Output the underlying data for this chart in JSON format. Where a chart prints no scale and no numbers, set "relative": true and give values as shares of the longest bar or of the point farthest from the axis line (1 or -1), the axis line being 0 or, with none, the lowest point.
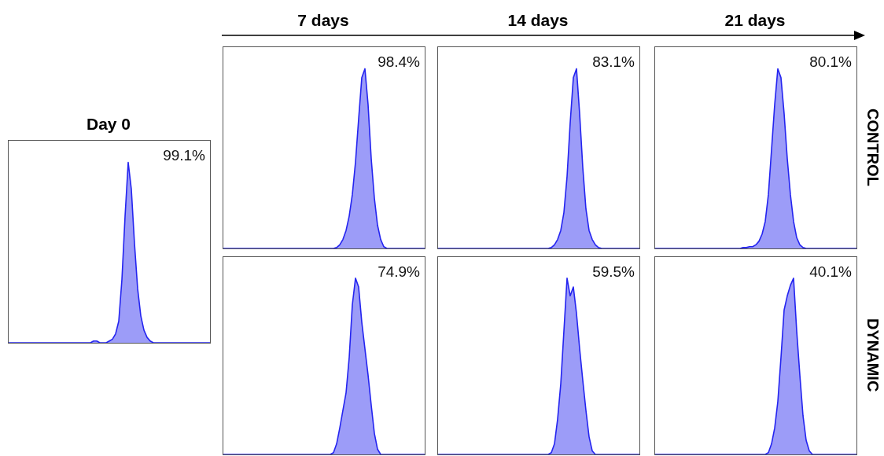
{
  "chart_data": [
    {
      "type": "area",
      "relative": true,
      "title": "Day 0",
      "annotations": [
        "99.1%"
      ],
      "categories": [
        null,
        null,
        null,
        null,
        null,
        null,
        null,
        null,
        null,
        null,
        null,
        null,
        null,
        null,
        null,
        null,
        null,
        null,
        null,
        null,
        null,
        null,
        null,
        null,
        null,
        null,
        null,
        null,
        null,
        null,
        null,
        null,
        null,
        null,
        null,
        null,
        null,
        null,
        null,
        null,
        null,
        null,
        null,
        null,
        null,
        null,
        null,
        null,
        null,
        null,
        null,
        null,
        null,
        null,
        null,
        null,
        null,
        null,
        null,
        null,
        null,
        null,
        null,
        null,
        null
      ],
      "series": [
        {
          "color": "#2424f0",
          "values": [
            0,
            0,
            0,
            0,
            0,
            0,
            0,
            0,
            0,
            0,
            0,
            0,
            0,
            0,
            0,
            0,
            0,
            0,
            0,
            0,
            0,
            0,
            0,
            0,
            0,
            0,
            0,
            0.01,
            0.01,
            0,
            0,
            0,
            0.01,
            0.02,
            0.05,
            0.12,
            0.35,
            0.7,
            1,
            0.85,
            0.55,
            0.3,
            0.15,
            0.07,
            0.03,
            0.01,
            0,
            0,
            0,
            0,
            0,
            0,
            0,
            0,
            0,
            0,
            0,
            0,
            0,
            0,
            0,
            0,
            0,
            0,
            0
          ]
        }
      ]
    },
    {
      "type": "area",
      "relative": true,
      "title": "7 days",
      "annotations": [
        "98.4%"
      ],
      "categories": [
        null,
        null,
        null,
        null,
        null,
        null,
        null,
        null,
        null,
        null,
        null,
        null,
        null,
        null,
        null,
        null,
        null,
        null,
        null,
        null,
        null,
        null,
        null,
        null,
        null,
        null,
        null,
        null,
        null,
        null,
        null,
        null,
        null,
        null,
        null,
        null,
        null,
        null,
        null,
        null,
        null,
        null,
        null,
        null,
        null,
        null,
        null,
        null,
        null,
        null,
        null,
        null,
        null,
        null,
        null,
        null,
        null,
        null,
        null,
        null,
        null,
        null,
        null,
        null,
        null
      ],
      "series": [
        {
          "color": "#2424f0",
          "values": [
            0,
            0,
            0,
            0,
            0,
            0,
            0,
            0,
            0,
            0,
            0,
            0,
            0,
            0,
            0,
            0,
            0,
            0,
            0,
            0,
            0,
            0,
            0,
            0,
            0,
            0,
            0,
            0,
            0,
            0,
            0,
            0,
            0,
            0,
            0,
            0,
            0.005,
            0.02,
            0.05,
            0.1,
            0.18,
            0.3,
            0.48,
            0.72,
            0.95,
            1,
            0.8,
            0.5,
            0.28,
            0.13,
            0.05,
            0.01,
            0,
            0,
            0,
            0,
            0,
            0,
            0,
            0,
            0,
            0,
            0,
            0,
            0
          ]
        }
      ]
    },
    {
      "type": "area",
      "relative": true,
      "title": "14 days",
      "annotations": [
        "83.1%"
      ],
      "categories": [
        null,
        null,
        null,
        null,
        null,
        null,
        null,
        null,
        null,
        null,
        null,
        null,
        null,
        null,
        null,
        null,
        null,
        null,
        null,
        null,
        null,
        null,
        null,
        null,
        null,
        null,
        null,
        null,
        null,
        null,
        null,
        null,
        null,
        null,
        null,
        null,
        null,
        null,
        null,
        null,
        null,
        null,
        null,
        null,
        null,
        null,
        null,
        null,
        null,
        null,
        null,
        null,
        null,
        null,
        null,
        null,
        null,
        null,
        null,
        null,
        null,
        null,
        null,
        null,
        null
      ],
      "series": [
        {
          "color": "#2424f0",
          "values": [
            0,
            0,
            0,
            0,
            0,
            0,
            0,
            0,
            0,
            0,
            0,
            0,
            0,
            0,
            0,
            0,
            0,
            0,
            0,
            0,
            0,
            0,
            0,
            0,
            0,
            0,
            0,
            0,
            0,
            0,
            0,
            0,
            0,
            0,
            0,
            0,
            0.005,
            0.02,
            0.05,
            0.1,
            0.2,
            0.4,
            0.7,
            0.95,
            1,
            0.75,
            0.45,
            0.22,
            0.1,
            0.05,
            0.02,
            0.005,
            0,
            0,
            0,
            0,
            0,
            0,
            0,
            0,
            0,
            0,
            0,
            0,
            0
          ]
        }
      ]
    },
    {
      "type": "area",
      "relative": true,
      "title": "21 days",
      "y2label": "CONTROL",
      "annotations": [
        "80.1%"
      ],
      "categories": [
        null,
        null,
        null,
        null,
        null,
        null,
        null,
        null,
        null,
        null,
        null,
        null,
        null,
        null,
        null,
        null,
        null,
        null,
        null,
        null,
        null,
        null,
        null,
        null,
        null,
        null,
        null,
        null,
        null,
        null,
        null,
        null,
        null,
        null,
        null,
        null,
        null,
        null,
        null,
        null,
        null,
        null,
        null,
        null,
        null,
        null,
        null,
        null,
        null,
        null,
        null,
        null,
        null,
        null,
        null,
        null,
        null,
        null,
        null,
        null,
        null,
        null,
        null,
        null,
        null
      ],
      "series": [
        {
          "color": "#2424f0",
          "values": [
            0,
            0,
            0,
            0,
            0,
            0,
            0,
            0,
            0,
            0,
            0,
            0,
            0,
            0,
            0,
            0,
            0,
            0,
            0,
            0,
            0,
            0,
            0,
            0,
            0,
            0,
            0,
            0,
            0.005,
            0.005,
            0.01,
            0.01,
            0.02,
            0.04,
            0.08,
            0.15,
            0.3,
            0.55,
            0.8,
            1,
            0.95,
            0.75,
            0.5,
            0.3,
            0.15,
            0.06,
            0.02,
            0.005,
            0,
            0,
            0,
            0,
            0,
            0,
            0,
            0,
            0,
            0,
            0,
            0,
            0,
            0,
            0,
            0,
            0
          ]
        }
      ]
    },
    {
      "type": "area",
      "relative": true,
      "annotations": [
        "74.9%"
      ],
      "categories": [
        null,
        null,
        null,
        null,
        null,
        null,
        null,
        null,
        null,
        null,
        null,
        null,
        null,
        null,
        null,
        null,
        null,
        null,
        null,
        null,
        null,
        null,
        null,
        null,
        null,
        null,
        null,
        null,
        null,
        null,
        null,
        null,
        null,
        null,
        null,
        null,
        null,
        null,
        null,
        null,
        null,
        null,
        null,
        null,
        null,
        null,
        null,
        null,
        null,
        null,
        null,
        null,
        null,
        null,
        null,
        null,
        null,
        null,
        null,
        null,
        null,
        null,
        null,
        null,
        null
      ],
      "series": [
        {
          "color": "#2424f0",
          "values": [
            0,
            0,
            0,
            0,
            0,
            0,
            0,
            0,
            0,
            0,
            0,
            0,
            0,
            0,
            0,
            0,
            0,
            0,
            0,
            0,
            0,
            0,
            0,
            0,
            0,
            0,
            0,
            0,
            0,
            0,
            0,
            0,
            0,
            0,
            0,
            0.01,
            0.06,
            0.15,
            0.25,
            0.35,
            0.55,
            0.85,
            1,
            0.95,
            0.75,
            0.6,
            0.45,
            0.28,
            0.12,
            0.03,
            0,
            0,
            0,
            0,
            0,
            0,
            0,
            0,
            0,
            0,
            0,
            0,
            0,
            0,
            0
          ]
        }
      ]
    },
    {
      "type": "area",
      "relative": true,
      "annotations": [
        "59.5%"
      ],
      "categories": [
        null,
        null,
        null,
        null,
        null,
        null,
        null,
        null,
        null,
        null,
        null,
        null,
        null,
        null,
        null,
        null,
        null,
        null,
        null,
        null,
        null,
        null,
        null,
        null,
        null,
        null,
        null,
        null,
        null,
        null,
        null,
        null,
        null,
        null,
        null,
        null,
        null,
        null,
        null,
        null,
        null,
        null,
        null,
        null,
        null,
        null,
        null,
        null,
        null,
        null,
        null,
        null,
        null,
        null,
        null,
        null,
        null,
        null,
        null,
        null,
        null,
        null,
        null,
        null,
        null
      ],
      "series": [
        {
          "color": "#2424f0",
          "values": [
            0,
            0,
            0,
            0,
            0,
            0,
            0,
            0,
            0,
            0,
            0,
            0,
            0,
            0,
            0,
            0,
            0,
            0,
            0,
            0,
            0,
            0,
            0,
            0,
            0,
            0,
            0,
            0,
            0,
            0,
            0,
            0,
            0,
            0,
            0,
            0,
            0.01,
            0.06,
            0.2,
            0.4,
            0.7,
            1,
            0.9,
            0.95,
            0.8,
            0.6,
            0.42,
            0.25,
            0.1,
            0.02,
            0,
            0,
            0,
            0,
            0,
            0,
            0,
            0,
            0,
            0,
            0,
            0,
            0,
            0,
            0
          ]
        }
      ]
    },
    {
      "type": "area",
      "relative": true,
      "y2label": "DYNAMIC",
      "annotations": [
        "40.1%"
      ],
      "categories": [
        null,
        null,
        null,
        null,
        null,
        null,
        null,
        null,
        null,
        null,
        null,
        null,
        null,
        null,
        null,
        null,
        null,
        null,
        null,
        null,
        null,
        null,
        null,
        null,
        null,
        null,
        null,
        null,
        null,
        null,
        null,
        null,
        null,
        null,
        null,
        null,
        null,
        null,
        null,
        null,
        null,
        null,
        null,
        null,
        null,
        null,
        null,
        null,
        null,
        null,
        null,
        null,
        null,
        null,
        null,
        null,
        null,
        null,
        null,
        null,
        null,
        null,
        null,
        null,
        null
      ],
      "series": [
        {
          "color": "#2424f0",
          "values": [
            0,
            0,
            0,
            0,
            0,
            0,
            0,
            0,
            0,
            0,
            0,
            0,
            0,
            0,
            0,
            0,
            0,
            0,
            0,
            0,
            0,
            0,
            0,
            0,
            0,
            0,
            0,
            0,
            0,
            0,
            0,
            0,
            0,
            0,
            0,
            0,
            0.01,
            0.06,
            0.15,
            0.3,
            0.55,
            0.82,
            0.9,
            0.96,
            1,
            0.7,
            0.45,
            0.22,
            0.08,
            0.02,
            0,
            0,
            0,
            0,
            0,
            0,
            0,
            0,
            0,
            0,
            0,
            0,
            0,
            0,
            0
          ]
        }
      ]
    }
  ]
}
